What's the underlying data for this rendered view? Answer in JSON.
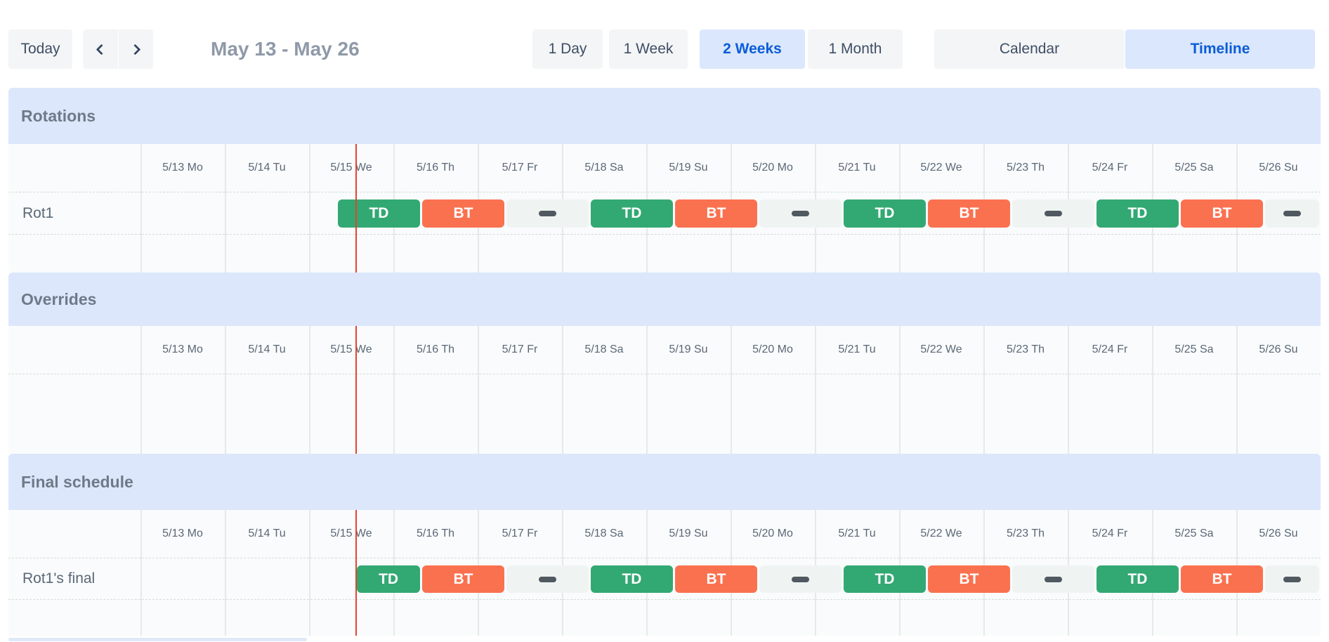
{
  "toolbar": {
    "today_label": "Today",
    "prev_icon": "chevron-left",
    "next_icon": "chevron-right",
    "range_title": "May 13 - May 26",
    "view_buttons": [
      {
        "label": "1 Day",
        "selected": false
      },
      {
        "label": "1 Week",
        "selected": false
      },
      {
        "label": "2 Weeks",
        "selected": true
      },
      {
        "label": "1 Month",
        "selected": false
      }
    ],
    "mode_buttons": [
      {
        "label": "Calendar",
        "selected": false
      },
      {
        "label": "Timeline",
        "selected": true
      }
    ]
  },
  "timeline": {
    "dates": [
      "5/13 Mo",
      "5/14 Tu",
      "5/15 We",
      "5/16 Th",
      "5/17 Fr",
      "5/18 Sa",
      "5/19 Su",
      "5/20 Mo",
      "5/21 Tu",
      "5/22 We",
      "5/23 Th",
      "5/24 Fr",
      "5/25 Sa",
      "5/26 Su"
    ],
    "now_day": 2.56,
    "sections": [
      {
        "key": "rotations",
        "title": "Rotations",
        "rows": [
          {
            "label": "Rot1",
            "bars": [
              {
                "type": "TD",
                "label": "TD",
                "start": 2.3333,
                "end": 3.3333
              },
              {
                "type": "BT",
                "label": "BT",
                "start": 3.3333,
                "end": 4.3333
              },
              {
                "type": "OFF",
                "label": "",
                "start": 4.3333,
                "end": 5.3333
              },
              {
                "type": "TD",
                "label": "TD",
                "start": 5.3333,
                "end": 6.3333
              },
              {
                "type": "BT",
                "label": "BT",
                "start": 6.3333,
                "end": 7.3333
              },
              {
                "type": "OFF",
                "label": "",
                "start": 7.3333,
                "end": 8.3333
              },
              {
                "type": "TD",
                "label": "TD",
                "start": 8.3333,
                "end": 9.3333
              },
              {
                "type": "BT",
                "label": "BT",
                "start": 9.3333,
                "end": 10.3333
              },
              {
                "type": "OFF",
                "label": "",
                "start": 10.3333,
                "end": 11.3333
              },
              {
                "type": "TD",
                "label": "TD",
                "start": 11.3333,
                "end": 12.3333
              },
              {
                "type": "BT",
                "label": "BT",
                "start": 12.3333,
                "end": 13.3333
              },
              {
                "type": "OFF",
                "label": "",
                "start": 13.3333,
                "end": 14
              }
            ]
          }
        ]
      },
      {
        "key": "overrides",
        "title": "Overrides",
        "rows": []
      },
      {
        "key": "final",
        "title": "Final schedule",
        "rows": [
          {
            "label": "Rot1's final",
            "bars": [
              {
                "type": "TD",
                "label": "TD",
                "start": 2.56,
                "end": 3.3333
              },
              {
                "type": "BT",
                "label": "BT",
                "start": 3.3333,
                "end": 4.3333
              },
              {
                "type": "OFF",
                "label": "",
                "start": 4.3333,
                "end": 5.3333
              },
              {
                "type": "TD",
                "label": "TD",
                "start": 5.3333,
                "end": 6.3333
              },
              {
                "type": "BT",
                "label": "BT",
                "start": 6.3333,
                "end": 7.3333
              },
              {
                "type": "OFF",
                "label": "",
                "start": 7.3333,
                "end": 8.3333
              },
              {
                "type": "TD",
                "label": "TD",
                "start": 8.3333,
                "end": 9.3333
              },
              {
                "type": "BT",
                "label": "BT",
                "start": 9.3333,
                "end": 10.3333
              },
              {
                "type": "OFF",
                "label": "",
                "start": 10.3333,
                "end": 11.3333
              },
              {
                "type": "TD",
                "label": "TD",
                "start": 11.3333,
                "end": 12.3333
              },
              {
                "type": "BT",
                "label": "BT",
                "start": 12.3333,
                "end": 13.3333
              },
              {
                "type": "OFF",
                "label": "",
                "start": 13.3333,
                "end": 14
              }
            ]
          }
        ]
      }
    ]
  },
  "colors": {
    "accent_blue": "#0b5cd7",
    "selected_bg": "#dbe7fc",
    "section_band": "#dce7fb",
    "shift_td_green": "#32a873",
    "shift_bt_orange": "#fa7150",
    "off_block_bg": "#eff4f2",
    "now_line_red": "#e0452f"
  }
}
